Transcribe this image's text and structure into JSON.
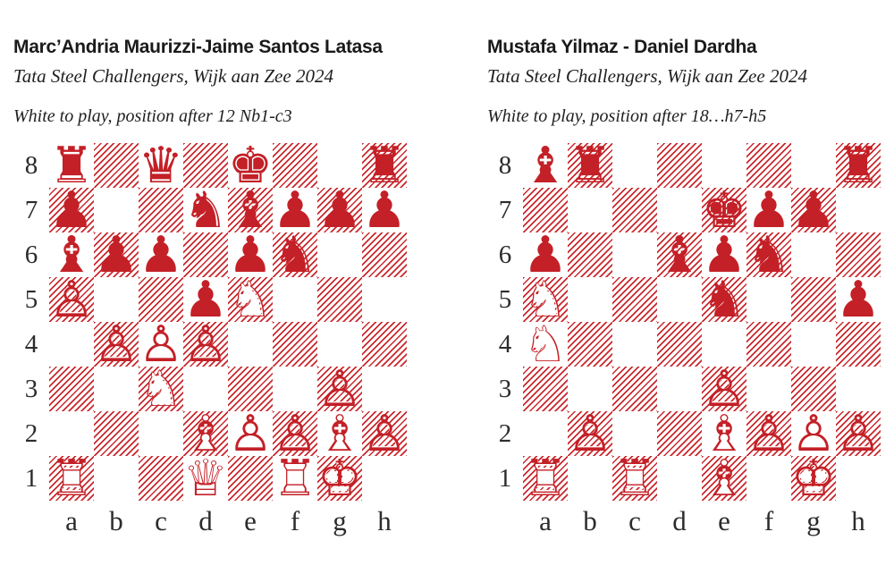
{
  "page": {
    "background": "#ffffff",
    "accent_red": "#c32027",
    "hatch_red": "#c9292e",
    "text_color": "#1a1a1a"
  },
  "board_labels": {
    "files": [
      "a",
      "b",
      "c",
      "d",
      "e",
      "f",
      "g",
      "h"
    ],
    "ranks": [
      "8",
      "7",
      "6",
      "5",
      "4",
      "3",
      "2",
      "1"
    ]
  },
  "piece_names": {
    "k": "king",
    "q": "queen",
    "r": "rook",
    "b": "bishop",
    "n": "knight",
    "p": "pawn"
  },
  "glyphs": {
    "white": {
      "K": "♔",
      "Q": "♕",
      "R": "♖",
      "B": "♗",
      "N": "♘",
      "P": "♙"
    },
    "black": {
      "k": "♚",
      "q": "♛",
      "r": "♜",
      "b": "♝",
      "n": "♞",
      "p": "♟"
    },
    "backing": {
      "K": "♚",
      "Q": "♛",
      "R": "♜",
      "B": "♝",
      "N": "♞",
      "P": "♙"
    }
  },
  "diagrams": [
    {
      "title": "Marc’Andria Maurizzi-Jaime Santos Latasa",
      "event": "Tata Steel Challengers, Wijk aan Zee 2024",
      "caption": "White to play, position after 12 Nb1-c3",
      "fen": "r1q1k2r/p2nbppp/bpp1pn2/P2pN3/1PPP4/2N3P1/3BPPBP/R2Q1RK1"
    },
    {
      "title": "Mustafa Yilmaz - Daniel Dardha",
      "event": "Tata Steel Challengers, Wijk aan Zee 2024",
      "caption": "White to play, position after 18…h7-h5",
      "fen": "br5r/4kpp1/p2bpn2/N3n2p/N7/4P3/1P2BPPP/R1R1B1K1"
    }
  ]
}
